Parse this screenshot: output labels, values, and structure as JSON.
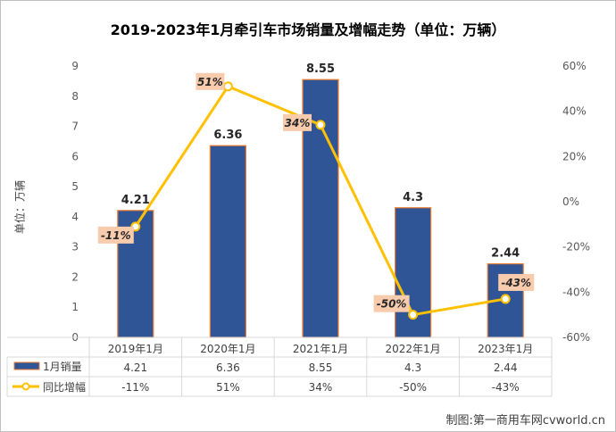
{
  "chart_data": {
    "type": "bar",
    "title": "2019-2023年1月牵引车市场销量及增幅走势（单位：万辆）",
    "ylabel": "单位：万辆",
    "categories": [
      "2019年1月",
      "2020年1月",
      "2021年1月",
      "2022年1月",
      "2023年1月"
    ],
    "ylim": [
      0,
      9
    ],
    "y2lim": [
      -60,
      60
    ],
    "y_ticks": [
      "0",
      "1",
      "2",
      "3",
      "4",
      "5",
      "6",
      "7",
      "8",
      "9"
    ],
    "y2_ticks": [
      "-60%",
      "-40%",
      "-20%",
      "0%",
      "20%",
      "40%",
      "60%"
    ],
    "grid": false,
    "legend": "bottom-table",
    "series": [
      {
        "name": "1月销量",
        "type": "bar",
        "axis": "left",
        "values": [
          4.21,
          6.36,
          8.55,
          4.3,
          2.44
        ],
        "labels": [
          "4.21",
          "6.36",
          "8.55",
          "4.3",
          "2.44"
        ],
        "color": "#2F5597",
        "edge": "#ED7D31"
      },
      {
        "name": "同比增幅",
        "type": "line",
        "axis": "right",
        "values": [
          -11,
          51,
          34,
          -50,
          -43
        ],
        "labels": [
          "-11%",
          "51%",
          "34%",
          "-50%",
          "-43%"
        ],
        "color": "#FFC000"
      }
    ]
  },
  "credit": "制图:第一商用车网cvworld.cn"
}
